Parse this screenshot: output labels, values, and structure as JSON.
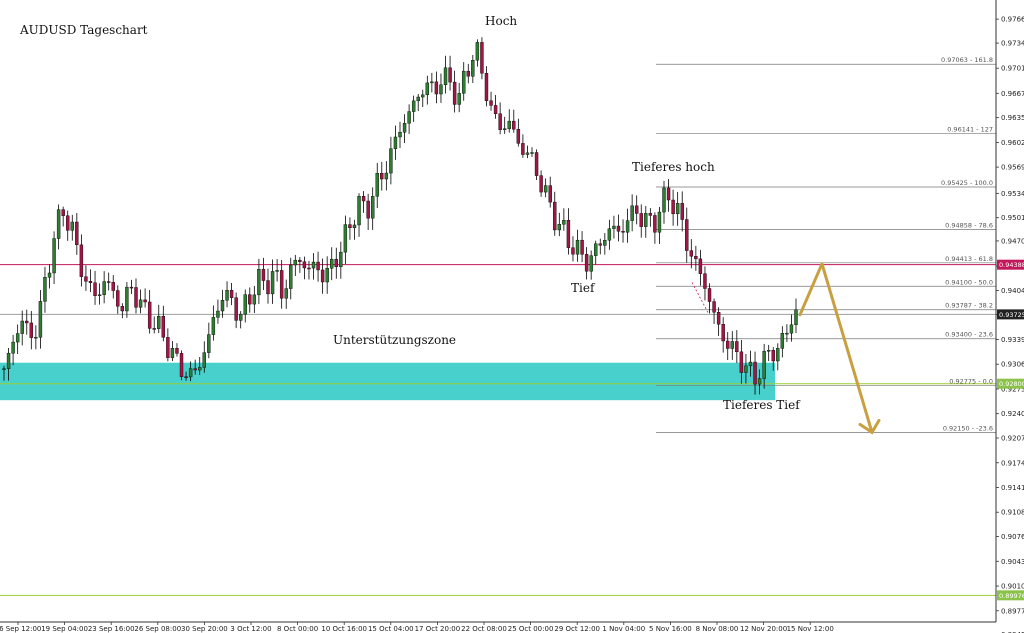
{
  "chart_data": {
    "type": "candlestick",
    "title": "AUDUSD Tageschart",
    "ylim": [
      0.8962,
      0.9792
    ],
    "y_ticks": [
      "0.97665",
      "0.97345",
      "0.97010",
      "0.96675",
      "0.96350",
      "0.96020",
      "0.95690",
      "0.95340",
      "0.95015",
      "0.94705",
      "0.94370",
      "0.94045",
      "0.93725",
      "0.93390",
      "0.93060",
      "0.92730",
      "0.92400",
      "0.92075",
      "0.91745",
      "0.91415",
      "0.91085",
      "0.90760",
      "0.90430",
      "0.90100",
      "0.89770",
      "0.89450"
    ],
    "x_ticks": [
      "16 Sep 12:00",
      "19 Sep 04:00",
      "23 Sep 16:00",
      "26 Sep 08:00",
      "30 Sep 20:00",
      "3 Oct 12:00",
      "8 Oct 00:00",
      "10 Oct 16:00",
      "15 Oct 04:00",
      "17 Oct 20:00",
      "22 Oct 08:00",
      "25 Oct 00:00",
      "29 Oct 12:00",
      "1 Nov 04:00",
      "5 Nov 16:00",
      "8 Nov 08:00",
      "12 Nov 20:00",
      "15 Nov 12:00"
    ],
    "price_tags": [
      {
        "value": "0.94388",
        "color": "#c2185b"
      },
      {
        "value": "0.93725",
        "color": "#222222"
      },
      {
        "value": "0.92800",
        "color": "#8bc34a"
      },
      {
        "value": "0.89976",
        "color": "#8bc34a"
      }
    ],
    "horizontal_lines": [
      {
        "price": 0.94388,
        "color": "#c2185b"
      },
      {
        "price": 0.93725,
        "color": "#9e9e9e"
      },
      {
        "price": 0.928,
        "color": "#9acd32"
      },
      {
        "price": 0.89976,
        "color": "#9acd32"
      }
    ],
    "fibonacci": [
      {
        "price": 0.97063,
        "label": "0.97063 - 161.8"
      },
      {
        "price": 0.96141,
        "label": "0.96141 - 127"
      },
      {
        "price": 0.95425,
        "label": "0.95425 - 100.0"
      },
      {
        "price": 0.94858,
        "label": "0.94858 - 78.6"
      },
      {
        "price": 0.94413,
        "label": "0.94413 - 61.8"
      },
      {
        "price": 0.941,
        "label": "0.94100 - 50.0"
      },
      {
        "price": 0.93787,
        "label": "0.93787 - 38.2"
      },
      {
        "price": 0.934,
        "label": "0.93400 - 23.6"
      },
      {
        "price": 0.92775,
        "label": "0.92775 - 0.0"
      },
      {
        "price": 0.9215,
        "label": "0.92150 - -23.6"
      }
    ],
    "support_zone": {
      "label": "Unterstützungszone",
      "top": 0.9308,
      "bottom": 0.9258,
      "color": "#48d1cc"
    },
    "annotations": [
      "Hoch",
      "Tieferes hoch",
      "Tief",
      "Tieferes Tief"
    ],
    "price_path": [
      0.93,
      0.933,
      0.937,
      0.934,
      0.936,
      0.942,
      0.948,
      0.951,
      0.949,
      0.944,
      0.941,
      0.9395,
      0.942,
      0.94,
      0.938,
      0.941,
      0.939,
      0.937,
      0.936,
      0.934,
      0.932,
      0.93,
      0.929,
      0.93,
      0.933,
      0.937,
      0.94,
      0.939,
      0.937,
      0.939,
      0.942,
      0.941,
      0.943,
      0.94,
      0.943,
      0.945,
      0.943,
      0.944,
      0.942,
      0.944,
      0.946,
      0.949,
      0.952,
      0.951,
      0.954,
      0.956,
      0.959,
      0.962,
      0.964,
      0.966,
      0.968,
      0.967,
      0.969,
      0.968,
      0.966,
      0.97,
      0.973,
      0.968,
      0.964,
      0.962,
      0.963,
      0.96,
      0.959,
      0.957,
      0.954,
      0.951,
      0.949,
      0.947,
      0.946,
      0.944,
      0.9455,
      0.947,
      0.949,
      0.948,
      0.95,
      0.951,
      0.95,
      0.949,
      0.952,
      0.953,
      0.951,
      0.947,
      0.944,
      0.942,
      0.938,
      0.935,
      0.933,
      0.932,
      0.93,
      0.929,
      0.93,
      0.933,
      0.932,
      0.936,
      0.937
    ],
    "forecast_path": [
      0.9372,
      0.944,
      0.9215
    ]
  }
}
